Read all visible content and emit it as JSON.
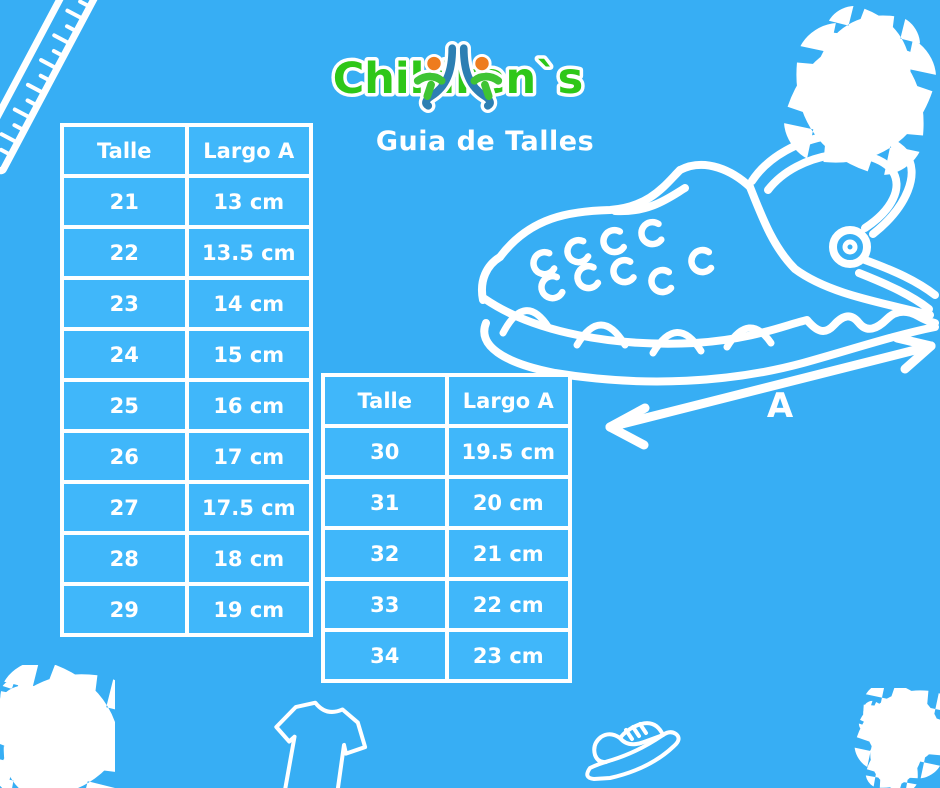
{
  "colors": {
    "background": "#37aef4",
    "cell_background": "#40b7fa",
    "text_white": "#ffffff",
    "brand_green": "#2ec718",
    "logo_icon_blue": "#2c7fb3",
    "logo_icon_orange": "#ee7c1e",
    "logo_icon_green": "#3fc433"
  },
  "header": {
    "brand": "Children`s",
    "title": "Guia de Talles"
  },
  "size_tables": [
    {
      "name": "sizes-21-29",
      "headers": [
        "Talle",
        "Largo A"
      ],
      "rows": [
        [
          "21",
          "13 cm"
        ],
        [
          "22",
          "13.5 cm"
        ],
        [
          "23",
          "14 cm"
        ],
        [
          "24",
          "15 cm"
        ],
        [
          "25",
          "16 cm"
        ],
        [
          "26",
          "17 cm"
        ],
        [
          "27",
          "17.5 cm"
        ],
        [
          "28",
          "18 cm"
        ],
        [
          "29",
          "19 cm"
        ]
      ]
    },
    {
      "name": "sizes-30-34",
      "headers": [
        "Talle",
        "Largo A"
      ],
      "rows": [
        [
          "30",
          "19.5 cm"
        ],
        [
          "31",
          "20 cm"
        ],
        [
          "32",
          "21 cm"
        ],
        [
          "33",
          "22 cm"
        ],
        [
          "34",
          "23 cm"
        ]
      ]
    }
  ],
  "diagram": {
    "shoe": "clog-outline-icon",
    "arrow_label": "A"
  },
  "decorations": [
    "ruler-icon",
    "sparkles-icon",
    "tshirt-icon",
    "sneaker-icon"
  ]
}
